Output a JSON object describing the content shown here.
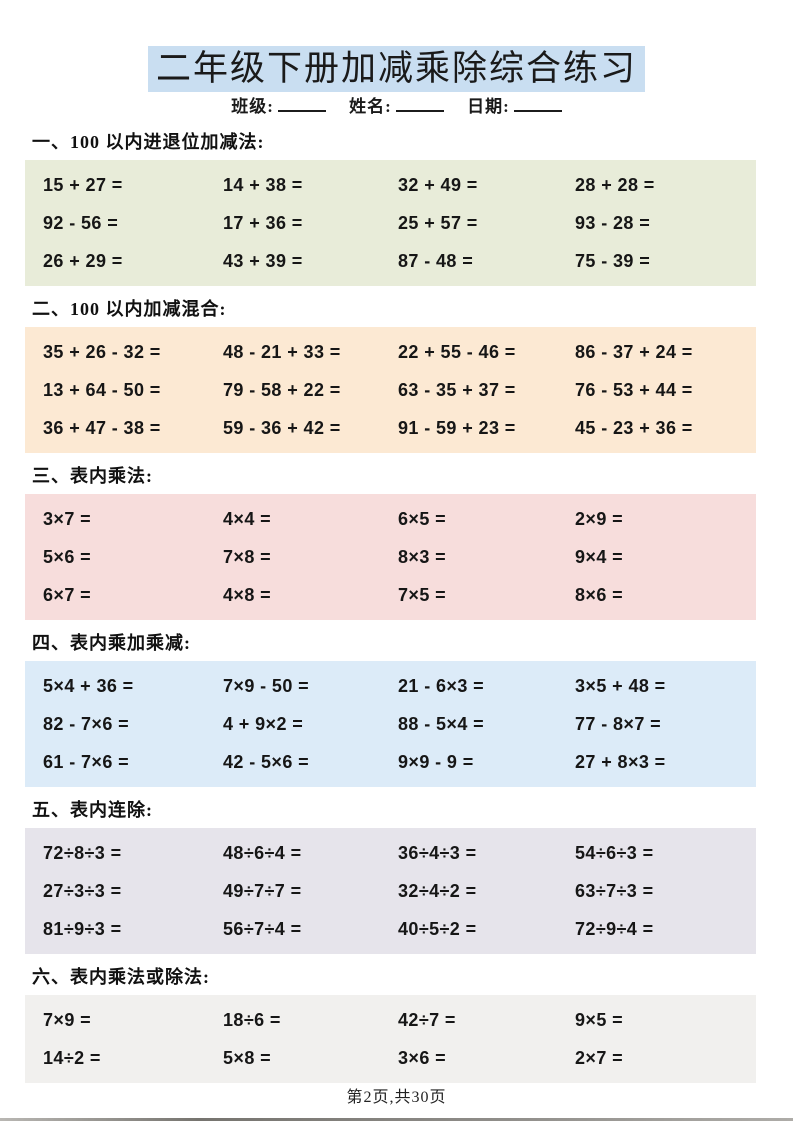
{
  "page": {
    "title": "二年级下册加减乘除综合练习",
    "title_highlight": "#c9def1",
    "meta": {
      "class_label": "班级:",
      "name_label": "姓名:",
      "date_label": "日期:"
    },
    "footer": "第2页,共30页"
  },
  "sections": [
    {
      "heading": "一、100 以内进退位加减法:",
      "bg": "#e8ecd9",
      "problems": [
        [
          "15 + 27 =",
          "14 + 38 =",
          "32 + 49 =",
          "28 + 28 ="
        ],
        [
          "92 - 56 =",
          "17 + 36 =",
          "25 + 57 =",
          "93 - 28 ="
        ],
        [
          "26 + 29 =",
          "43 + 39 =",
          "87 - 48 =",
          "75 - 39 ="
        ]
      ]
    },
    {
      "heading": "二、100 以内加减混合:",
      "bg": "#fce9d3",
      "problems": [
        [
          "35 + 26 - 32 =",
          "48 - 21 + 33 =",
          "22 + 55 - 46 =",
          "86 - 37 + 24 ="
        ],
        [
          "13 + 64 - 50 =",
          "79 - 58 + 22 =",
          "63 - 35 + 37 =",
          "76 - 53 + 44 ="
        ],
        [
          "36 + 47 - 38 =",
          "59 - 36 + 42 =",
          "91 - 59 + 23 =",
          "45 - 23 + 36 ="
        ]
      ]
    },
    {
      "heading": "三、表内乘法:",
      "bg": "#f7dddc",
      "problems": [
        [
          "3×7 =",
          "4×4 =",
          "6×5 =",
          "2×9 ="
        ],
        [
          "5×6 =",
          "7×8 =",
          "8×3 =",
          "9×4 ="
        ],
        [
          "6×7 =",
          "4×8 =",
          "7×5 =",
          "8×6 ="
        ]
      ]
    },
    {
      "heading": "四、表内乘加乘减:",
      "bg": "#dcebf8",
      "problems": [
        [
          "5×4 + 36 =",
          "7×9 - 50 =",
          "21 - 6×3 =",
          "3×5 + 48 ="
        ],
        [
          "82 - 7×6 =",
          "4 + 9×2 =",
          "88 - 5×4 =",
          "77 - 8×7 ="
        ],
        [
          "61 - 7×6 =",
          "42 - 5×6 =",
          "9×9 - 9 =",
          "27 + 8×3 ="
        ]
      ]
    },
    {
      "heading": "五、表内连除:",
      "bg": "#e6e4eb",
      "problems": [
        [
          "72÷8÷3 =",
          "48÷6÷4 =",
          "36÷4÷3 =",
          "54÷6÷3 ="
        ],
        [
          "27÷3÷3 =",
          "49÷7÷7 =",
          "32÷4÷2 =",
          "63÷7÷3 ="
        ],
        [
          "81÷9÷3 =",
          "56÷7÷4 =",
          "40÷5÷2 =",
          "72÷9÷4 ="
        ]
      ]
    },
    {
      "heading": "六、表内乘法或除法:",
      "bg": "#f1f0ee",
      "problems": [
        [
          "7×9 =",
          "18÷6 =",
          "42÷7 =",
          "9×5 ="
        ],
        [
          "14÷2 =",
          "5×8 =",
          "3×6 =",
          "2×7 ="
        ]
      ]
    }
  ]
}
